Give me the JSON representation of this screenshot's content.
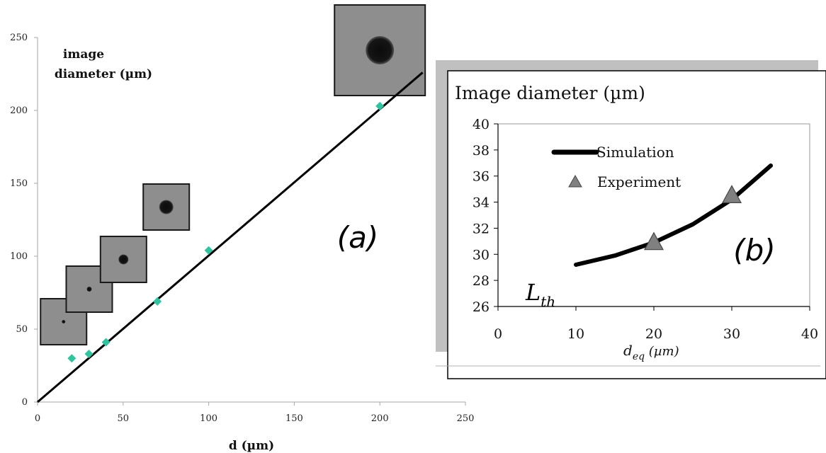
{
  "panel_labels": {
    "a": "(a)",
    "b": "(b)"
  },
  "chart_data": [
    {
      "type": "scatter",
      "xlabel": "d (µm)",
      "ylabel_line1": "image",
      "ylabel_line2": "diameter (µm)",
      "xlim": [
        0,
        250
      ],
      "ylim": [
        0,
        250
      ],
      "x_ticks": [
        "0",
        "50",
        "100",
        "150",
        "200",
        "250"
      ],
      "y_ticks": [
        "0",
        "50",
        "100",
        "150",
        "200",
        "250"
      ],
      "grid": false,
      "marker_color": "#2ec4a0",
      "points": [
        {
          "x": 20,
          "y": 30
        },
        {
          "x": 30,
          "y": 33
        },
        {
          "x": 40,
          "y": 41
        },
        {
          "x": 70,
          "y": 69
        },
        {
          "x": 100,
          "y": 104
        },
        {
          "x": 200,
          "y": 203
        }
      ],
      "fit_line": [
        [
          0,
          0
        ],
        [
          225,
          226
        ]
      ],
      "insets": [
        {
          "d": 15,
          "spot": "tiny"
        },
        {
          "d": 30,
          "spot": "small"
        },
        {
          "d": 50,
          "spot": "medium"
        },
        {
          "d": 75,
          "spot": "large"
        },
        {
          "d": 200,
          "spot": "very-large"
        }
      ]
    },
    {
      "type": "line",
      "title": "Image diameter (µm)",
      "xlabel": "d",
      "xlabel_sub": "eq",
      "xlabel_unit": " (µm)",
      "threshold_label": "L",
      "threshold_sub": "th",
      "xlim": [
        0,
        40
      ],
      "ylim": [
        26,
        40
      ],
      "x_ticks": [
        "0",
        "10",
        "20",
        "30",
        "40"
      ],
      "y_ticks": [
        "26",
        "28",
        "30",
        "32",
        "34",
        "36",
        "38",
        "40"
      ],
      "grid": false,
      "legend_position": "top-left",
      "series": [
        {
          "name": "Simulation",
          "kind": "line",
          "color": "#000000",
          "x": [
            10,
            15,
            20,
            25,
            30,
            35
          ],
          "y": [
            29.2,
            29.9,
            30.9,
            32.3,
            34.2,
            36.8
          ]
        },
        {
          "name": "Experiment",
          "kind": "triangle",
          "color": "#808080",
          "x": [
            20,
            30
          ],
          "y": [
            30.9,
            34.5
          ]
        }
      ]
    }
  ]
}
